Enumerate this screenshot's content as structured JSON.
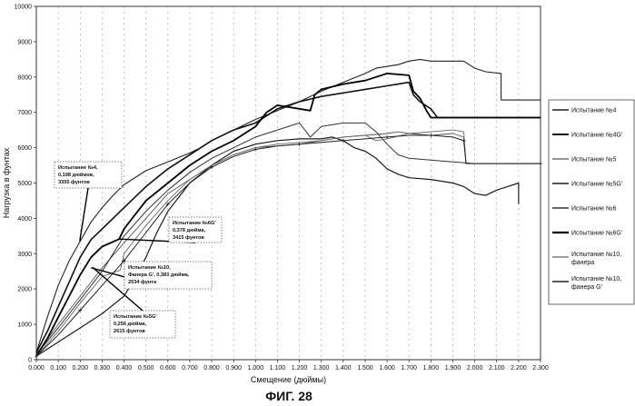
{
  "figure": {
    "caption": "ФИГ. 28"
  },
  "chart_data": {
    "type": "line",
    "title": "",
    "xlabel": "Смещение (дюймы)",
    "ylabel": "Нагрузка в фунтах",
    "xlim": [
      0,
      2.3
    ],
    "ylim": [
      0,
      10000
    ],
    "x_ticks": [
      0,
      0.1,
      0.2,
      0.3,
      0.4,
      0.5,
      0.6,
      0.7,
      0.8,
      0.9,
      1.0,
      1.1,
      1.2,
      1.3,
      1.4,
      1.5,
      1.6,
      1.7,
      1.8,
      1.9,
      2.0,
      2.1,
      2.2,
      2.3
    ],
    "x_tick_labels": [
      "0.000",
      "0.100",
      "0.200",
      "0.300",
      "0.400",
      "0.500",
      "0.600",
      "0.700",
      "0.800",
      "0.900",
      "1.000",
      "1.100",
      "1.200",
      "1.300",
      "1.400",
      "1.500",
      "1.600",
      "1.700",
      "1.800",
      "1.900",
      "2.000",
      "2.100",
      "2.200",
      "2.300"
    ],
    "y_ticks": [
      0,
      1000,
      2000,
      3000,
      4000,
      5000,
      6000,
      7000,
      8000,
      9000,
      10000
    ],
    "grid": "vertical dashed",
    "legend_position": "right",
    "series": [
      {
        "name": "Испытание №4",
        "color": "#222222",
        "width": 1.1,
        "points": [
          [
            0,
            200
          ],
          [
            0.05,
            1200
          ],
          [
            0.1,
            2100
          ],
          [
            0.15,
            2800
          ],
          [
            0.2,
            3355
          ],
          [
            0.25,
            3900
          ],
          [
            0.3,
            4300
          ],
          [
            0.35,
            4650
          ],
          [
            0.4,
            4950
          ],
          [
            0.5,
            5350
          ],
          [
            0.6,
            5600
          ],
          [
            0.7,
            5850
          ],
          [
            0.75,
            6000
          ],
          [
            0.8,
            6200
          ],
          [
            0.9,
            6500
          ],
          [
            1.0,
            6800
          ],
          [
            1.1,
            7050
          ],
          [
            1.2,
            7300
          ],
          [
            1.3,
            7600
          ],
          [
            1.4,
            7850
          ],
          [
            1.5,
            8100
          ],
          [
            1.55,
            8250
          ],
          [
            1.6,
            8300
          ],
          [
            1.65,
            8350
          ],
          [
            1.7,
            8450
          ],
          [
            1.75,
            8500
          ],
          [
            1.8,
            8450
          ],
          [
            1.85,
            8450
          ],
          [
            1.9,
            8450
          ],
          [
            1.95,
            8450
          ],
          [
            2.0,
            8250
          ],
          [
            2.05,
            8150
          ],
          [
            2.12,
            8100
          ],
          [
            2.12,
            7350
          ],
          [
            2.3,
            7350
          ]
        ]
      },
      {
        "name": "Испытание №4G'",
        "color": "#111111",
        "width": 1.6,
        "points": [
          [
            0,
            200
          ],
          [
            0.05,
            800
          ],
          [
            0.1,
            1500
          ],
          [
            0.15,
            2200
          ],
          [
            0.2,
            2900
          ],
          [
            0.25,
            3400
          ],
          [
            0.3,
            3700
          ],
          [
            0.4,
            4300
          ],
          [
            0.5,
            4900
          ],
          [
            0.6,
            5400
          ],
          [
            0.7,
            5800
          ],
          [
            0.8,
            6200
          ],
          [
            0.9,
            6500
          ],
          [
            1.0,
            6700
          ],
          [
            1.05,
            6900
          ],
          [
            1.1,
            7100
          ],
          [
            1.2,
            7300
          ],
          [
            1.3,
            7450
          ],
          [
            1.4,
            7550
          ],
          [
            1.5,
            7650
          ],
          [
            1.6,
            7750
          ],
          [
            1.65,
            7800
          ],
          [
            1.7,
            7850
          ],
          [
            1.72,
            7500
          ],
          [
            1.75,
            7300
          ],
          [
            1.8,
            7100
          ],
          [
            1.83,
            6850
          ],
          [
            2.3,
            6850
          ]
        ]
      },
      {
        "name": "Испытание №5",
        "color": "#555555",
        "width": 0.9,
        "points": [
          [
            0,
            150
          ],
          [
            0.1,
            1000
          ],
          [
            0.2,
            1800
          ],
          [
            0.3,
            2600
          ],
          [
            0.4,
            3300
          ],
          [
            0.5,
            4000
          ],
          [
            0.6,
            4700
          ],
          [
            0.7,
            5100
          ],
          [
            0.8,
            5500
          ],
          [
            0.9,
            5800
          ],
          [
            1.0,
            6000
          ],
          [
            1.1,
            6050
          ],
          [
            1.2,
            6100
          ],
          [
            1.3,
            6200
          ],
          [
            1.4,
            6300
          ],
          [
            1.5,
            6350
          ],
          [
            1.6,
            6400
          ],
          [
            1.65,
            6450
          ],
          [
            1.7,
            6400
          ],
          [
            1.8,
            6350
          ],
          [
            1.9,
            6400
          ],
          [
            1.95,
            6300
          ],
          [
            1.96,
            5550
          ],
          [
            2.3,
            5550
          ]
        ]
      },
      {
        "name": "Испытание №5G'",
        "color": "#1a1a1a",
        "width": 1.2,
        "points": [
          [
            0,
            100
          ],
          [
            0.1,
            500
          ],
          [
            0.2,
            900
          ],
          [
            0.3,
            1300
          ],
          [
            0.4,
            1800
          ],
          [
            0.45,
            2300
          ],
          [
            0.5,
            2900
          ],
          [
            0.55,
            3600
          ],
          [
            0.6,
            4200
          ],
          [
            0.7,
            5000
          ],
          [
            0.8,
            5500
          ],
          [
            0.9,
            5900
          ],
          [
            1.0,
            6100
          ],
          [
            1.1,
            6200
          ],
          [
            1.2,
            6250
          ],
          [
            1.3,
            6250
          ],
          [
            1.35,
            6300
          ],
          [
            1.4,
            6200
          ],
          [
            1.45,
            6000
          ],
          [
            1.5,
            5900
          ],
          [
            1.55,
            5700
          ],
          [
            1.6,
            5400
          ],
          [
            1.65,
            5250
          ],
          [
            1.7,
            5150
          ],
          [
            1.8,
            5100
          ],
          [
            1.9,
            5000
          ],
          [
            1.95,
            4900
          ],
          [
            2.0,
            4700
          ],
          [
            2.05,
            4650
          ],
          [
            2.1,
            4800
          ],
          [
            2.15,
            4900
          ],
          [
            2.2,
            5000
          ],
          [
            2.2,
            4400
          ]
        ]
      },
      {
        "name": "Испытание №6",
        "color": "#333333",
        "width": 1.0,
        "points": [
          [
            0,
            150
          ],
          [
            0.1,
            900
          ],
          [
            0.2,
            1700
          ],
          [
            0.3,
            2500
          ],
          [
            0.35,
            3000
          ],
          [
            0.4,
            3500
          ],
          [
            0.5,
            4200
          ],
          [
            0.6,
            4800
          ],
          [
            0.7,
            5300
          ],
          [
            0.8,
            5700
          ],
          [
            0.9,
            6000
          ],
          [
            1.0,
            6300
          ],
          [
            1.1,
            6500
          ],
          [
            1.2,
            6700
          ],
          [
            1.25,
            6300
          ],
          [
            1.3,
            6600
          ],
          [
            1.4,
            6700
          ],
          [
            1.5,
            6700
          ],
          [
            1.55,
            6450
          ],
          [
            1.6,
            6100
          ],
          [
            1.65,
            5800
          ],
          [
            1.7,
            5700
          ],
          [
            1.8,
            5650
          ],
          [
            1.9,
            5600
          ],
          [
            2.0,
            5550
          ],
          [
            2.3,
            5550
          ]
        ]
      },
      {
        "name": "Испытание №6G'",
        "color": "#000000",
        "width": 1.8,
        "points": [
          [
            0,
            100
          ],
          [
            0.05,
            600
          ],
          [
            0.1,
            1200
          ],
          [
            0.15,
            1800
          ],
          [
            0.2,
            2400
          ],
          [
            0.25,
            2900
          ],
          [
            0.3,
            3200
          ],
          [
            0.378,
            3415
          ],
          [
            0.4,
            3700
          ],
          [
            0.5,
            4500
          ],
          [
            0.6,
            5000
          ],
          [
            0.7,
            5500
          ],
          [
            0.8,
            5900
          ],
          [
            0.9,
            6200
          ],
          [
            1.0,
            6600
          ],
          [
            1.05,
            7000
          ],
          [
            1.1,
            7200
          ],
          [
            1.2,
            7100
          ],
          [
            1.25,
            7050
          ],
          [
            1.27,
            7500
          ],
          [
            1.3,
            7650
          ],
          [
            1.4,
            7800
          ],
          [
            1.5,
            7900
          ],
          [
            1.55,
            8000
          ],
          [
            1.6,
            8100
          ],
          [
            1.7,
            8050
          ],
          [
            1.72,
            7600
          ],
          [
            1.75,
            7400
          ],
          [
            1.78,
            7050
          ],
          [
            1.8,
            6850
          ],
          [
            2.3,
            6850
          ]
        ]
      },
      {
        "name": "Испытание №10, фанера",
        "color": "#666666",
        "width": 0.9,
        "points": [
          [
            0,
            100
          ],
          [
            0.1,
            800
          ],
          [
            0.2,
            1600
          ],
          [
            0.3,
            2350
          ],
          [
            0.383,
            2534
          ],
          [
            0.4,
            3000
          ],
          [
            0.5,
            3800
          ],
          [
            0.6,
            4500
          ],
          [
            0.7,
            5100
          ],
          [
            0.8,
            5500
          ],
          [
            0.9,
            5800
          ],
          [
            1.0,
            6000
          ],
          [
            1.1,
            6100
          ],
          [
            1.2,
            6150
          ],
          [
            1.3,
            6200
          ],
          [
            1.4,
            6300
          ],
          [
            1.5,
            6350
          ],
          [
            1.55,
            6200
          ],
          [
            1.6,
            6250
          ],
          [
            1.7,
            6400
          ],
          [
            1.8,
            6450
          ],
          [
            1.9,
            6500
          ],
          [
            1.95,
            6450
          ],
          [
            1.96,
            5550
          ],
          [
            2.3,
            5550
          ]
        ]
      },
      {
        "name": "Испытание №10, фанера G'",
        "color": "#222222",
        "width": 1.0,
        "marker": "+",
        "points": [
          [
            0,
            100
          ],
          [
            0.1,
            700
          ],
          [
            0.2,
            1400
          ],
          [
            0.3,
            2100
          ],
          [
            0.4,
            2800
          ],
          [
            0.5,
            3600
          ],
          [
            0.6,
            4400
          ],
          [
            0.7,
            5000
          ],
          [
            0.8,
            5450
          ],
          [
            0.9,
            5750
          ],
          [
            1.0,
            5950
          ],
          [
            1.1,
            6050
          ],
          [
            1.2,
            6100
          ],
          [
            1.3,
            6150
          ],
          [
            1.4,
            6200
          ],
          [
            1.5,
            6250
          ],
          [
            1.6,
            6300
          ],
          [
            1.7,
            6350
          ],
          [
            1.8,
            6350
          ],
          [
            1.9,
            6300
          ],
          [
            1.95,
            6200
          ],
          [
            1.96,
            5550
          ],
          [
            2.3,
            5550
          ]
        ]
      }
    ],
    "annotations": [
      {
        "lines": [
          "Испытание №4,",
          "0,198 дюймов,",
          "3355 фунтов"
        ],
        "target": [
          0.198,
          3355
        ]
      },
      {
        "lines": [
          "Испытание №6G'",
          "0,378 дюйма,",
          "3415 фунтов"
        ],
        "target": [
          0.378,
          3415
        ]
      },
      {
        "lines": [
          "Испытание №10,",
          "Фанера G', 0,383 дюйма,",
          "2534 фунта"
        ],
        "target": [
          0.25,
          2600
        ]
      },
      {
        "lines": [
          "Испытание №5G'",
          "0,256 дюйма,",
          "2615 фунтов"
        ],
        "target": [
          0.256,
          2615
        ]
      }
    ]
  }
}
